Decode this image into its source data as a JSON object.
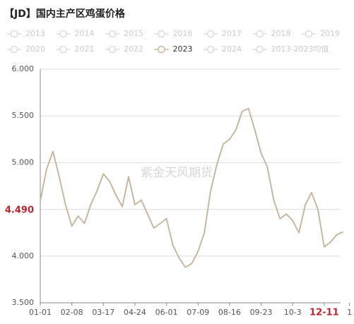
{
  "chart_data": {
    "type": "line",
    "title": "【JD】国内主产区鸡蛋价格",
    "watermark": "紫金天风期货",
    "legend": [
      {
        "name": "2013",
        "active": false
      },
      {
        "name": "2014",
        "active": false
      },
      {
        "name": "2015",
        "active": false
      },
      {
        "name": "2016",
        "active": false
      },
      {
        "name": "2017",
        "active": false
      },
      {
        "name": "2018",
        "active": false
      },
      {
        "name": "2019",
        "active": false
      },
      {
        "name": "2020",
        "active": false
      },
      {
        "name": "2021",
        "active": false
      },
      {
        "name": "2022",
        "active": false
      },
      {
        "name": "2023",
        "active": true
      },
      {
        "name": "2024",
        "active": false
      },
      {
        "name": "2013-2023均值",
        "active": false
      }
    ],
    "categories": [
      "01-01",
      null,
      null,
      null,
      null,
      "02-08",
      null,
      null,
      null,
      null,
      "03-17",
      null,
      null,
      null,
      null,
      "04-24",
      null,
      null,
      null,
      null,
      "06-01",
      null,
      null,
      null,
      null,
      "07-09",
      null,
      null,
      null,
      null,
      "08-16",
      null,
      null,
      null,
      null,
      "09-23",
      null,
      null,
      null,
      null,
      "10-3",
      null,
      null,
      null,
      null,
      "12-11",
      null,
      null,
      null,
      "1"
    ],
    "series": [
      {
        "name": "2023",
        "color": "#c8b8a2",
        "values": [
          4.59,
          4.93,
          5.12,
          4.85,
          4.55,
          4.32,
          4.43,
          4.35,
          4.55,
          4.7,
          4.88,
          4.8,
          4.65,
          4.53,
          4.85,
          4.55,
          4.6,
          4.45,
          4.3,
          4.35,
          4.4,
          4.12,
          3.98,
          3.88,
          3.92,
          4.05,
          4.25,
          4.7,
          4.98,
          5.2,
          5.25,
          5.35,
          5.55,
          5.58,
          5.35,
          5.1,
          4.95,
          4.6,
          4.4,
          4.45,
          4.38,
          4.25,
          4.55,
          4.68,
          4.5,
          4.1,
          4.15,
          4.23,
          4.26,
          null
        ]
      }
    ],
    "ylim": [
      3.5,
      6.0
    ],
    "yticks": [
      {
        "value": 3.5,
        "label": "3.500"
      },
      {
        "value": 4.0,
        "label": "4.000"
      },
      {
        "value": 4.5,
        "label": "4.500"
      },
      {
        "value": 5.0,
        "label": "5.000"
      },
      {
        "value": 5.5,
        "label": "5.500"
      },
      {
        "value": 6.0,
        "label": "6.000"
      }
    ],
    "y_marker": {
      "value": 4.49,
      "label": "4.490"
    },
    "x_marker": "12-11",
    "marker_color": "#c0262d",
    "grid": true
  }
}
